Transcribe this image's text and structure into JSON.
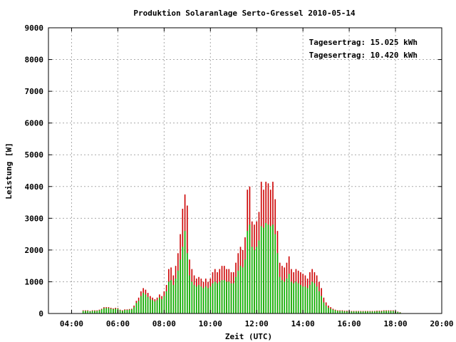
{
  "chart_data": {
    "type": "bar",
    "title": "Produktion Solaranlage Serto-Gressel 2010-05-14",
    "xlabel": "Zeit (UTC)",
    "ylabel": "Leistung [W]",
    "xlim_hours": [
      3.0,
      20.0
    ],
    "ylim": [
      0,
      9000
    ],
    "x_ticks": [
      "04:00",
      "06:00",
      "08:00",
      "10:00",
      "12:00",
      "14:00",
      "16:00",
      "18:00",
      "20:00"
    ],
    "y_ticks": [
      "0",
      "1000",
      "2000",
      "3000",
      "4000",
      "5000",
      "6000",
      "7000",
      "8000",
      "9000"
    ],
    "grid": true,
    "legend_position": "top-right",
    "colors": {
      "series_1": "#cc0000",
      "series_2": "#00bb00",
      "grid": "#aaaaaa"
    },
    "legend": [
      {
        "text": "Tagesertrag: 15.025 kWh",
        "color": "#cc0000"
      },
      {
        "text": "Tagesertrag: 10.420 kWh",
        "color": "#00bb00"
      }
    ],
    "series": [
      {
        "color": "#cc0000",
        "points": [
          [
            4.5,
            100
          ],
          [
            4.6,
            100
          ],
          [
            4.7,
            100
          ],
          [
            4.8,
            80
          ],
          [
            4.9,
            100
          ],
          [
            5.0,
            100
          ],
          [
            5.1,
            100
          ],
          [
            5.2,
            120
          ],
          [
            5.3,
            150
          ],
          [
            5.4,
            200
          ],
          [
            5.5,
            200
          ],
          [
            5.6,
            200
          ],
          [
            5.7,
            180
          ],
          [
            5.8,
            160
          ],
          [
            5.9,
            180
          ],
          [
            6.0,
            170
          ],
          [
            6.1,
            120
          ],
          [
            6.2,
            100
          ],
          [
            6.3,
            130
          ],
          [
            6.4,
            130
          ],
          [
            6.5,
            140
          ],
          [
            6.6,
            150
          ],
          [
            6.7,
            250
          ],
          [
            6.8,
            400
          ],
          [
            6.9,
            500
          ],
          [
            7.0,
            700
          ],
          [
            7.1,
            800
          ],
          [
            7.2,
            750
          ],
          [
            7.3,
            650
          ],
          [
            7.4,
            550
          ],
          [
            7.5,
            500
          ],
          [
            7.6,
            450
          ],
          [
            7.7,
            500
          ],
          [
            7.8,
            600
          ],
          [
            7.9,
            550
          ],
          [
            8.0,
            700
          ],
          [
            8.1,
            900
          ],
          [
            8.2,
            1400
          ],
          [
            8.3,
            1450
          ],
          [
            8.4,
            1200
          ],
          [
            8.5,
            1500
          ],
          [
            8.6,
            1900
          ],
          [
            8.7,
            2500
          ],
          [
            8.8,
            3300
          ],
          [
            8.9,
            3750
          ],
          [
            9.0,
            3400
          ],
          [
            9.1,
            1700
          ],
          [
            9.2,
            1400
          ],
          [
            9.3,
            1200
          ],
          [
            9.4,
            1100
          ],
          [
            9.5,
            1150
          ],
          [
            9.6,
            1100
          ],
          [
            9.7,
            1000
          ],
          [
            9.8,
            1100
          ],
          [
            9.9,
            1000
          ],
          [
            10.0,
            1100
          ],
          [
            10.1,
            1300
          ],
          [
            10.2,
            1400
          ],
          [
            10.3,
            1300
          ],
          [
            10.4,
            1400
          ],
          [
            10.5,
            1500
          ],
          [
            10.6,
            1500
          ],
          [
            10.7,
            1400
          ],
          [
            10.8,
            1400
          ],
          [
            10.9,
            1300
          ],
          [
            11.0,
            1300
          ],
          [
            11.1,
            1600
          ],
          [
            11.2,
            1900
          ],
          [
            11.3,
            2100
          ],
          [
            11.4,
            2000
          ],
          [
            11.5,
            2400
          ],
          [
            11.6,
            3900
          ],
          [
            11.7,
            4000
          ],
          [
            11.8,
            2900
          ],
          [
            11.9,
            2800
          ],
          [
            12.0,
            2900
          ],
          [
            12.1,
            3200
          ],
          [
            12.2,
            4150
          ],
          [
            12.3,
            3900
          ],
          [
            12.4,
            4150
          ],
          [
            12.5,
            4100
          ],
          [
            12.6,
            3900
          ],
          [
            12.7,
            4150
          ],
          [
            12.8,
            3600
          ],
          [
            12.9,
            2600
          ],
          [
            13.0,
            1600
          ],
          [
            13.1,
            1500
          ],
          [
            13.2,
            1450
          ],
          [
            13.3,
            1600
          ],
          [
            13.4,
            1800
          ],
          [
            13.5,
            1400
          ],
          [
            13.6,
            1300
          ],
          [
            13.7,
            1400
          ],
          [
            13.8,
            1350
          ],
          [
            13.9,
            1300
          ],
          [
            14.0,
            1250
          ],
          [
            14.1,
            1200
          ],
          [
            14.2,
            1100
          ],
          [
            14.3,
            1300
          ],
          [
            14.4,
            1400
          ],
          [
            14.5,
            1300
          ],
          [
            14.6,
            1200
          ],
          [
            14.7,
            1000
          ],
          [
            14.8,
            800
          ],
          [
            14.9,
            500
          ],
          [
            15.0,
            350
          ],
          [
            15.1,
            250
          ],
          [
            15.2,
            200
          ],
          [
            15.3,
            150
          ],
          [
            15.4,
            120
          ],
          [
            15.5,
            100
          ],
          [
            15.6,
            100
          ],
          [
            15.7,
            100
          ],
          [
            15.8,
            90
          ],
          [
            15.9,
            90
          ],
          [
            16.0,
            90
          ],
          [
            16.1,
            80
          ],
          [
            16.2,
            80
          ],
          [
            16.3,
            80
          ],
          [
            16.4,
            80
          ],
          [
            16.5,
            80
          ],
          [
            16.6,
            80
          ],
          [
            16.7,
            80
          ],
          [
            16.8,
            80
          ],
          [
            16.9,
            80
          ],
          [
            17.0,
            80
          ],
          [
            17.1,
            80
          ],
          [
            17.2,
            90
          ],
          [
            17.3,
            90
          ],
          [
            17.4,
            90
          ],
          [
            17.5,
            100
          ],
          [
            17.6,
            100
          ],
          [
            17.7,
            100
          ],
          [
            17.8,
            100
          ],
          [
            17.9,
            100
          ],
          [
            18.0,
            80
          ],
          [
            18.1,
            60
          ],
          [
            18.2,
            40
          ]
        ]
      },
      {
        "color": "#00bb00",
        "points": [
          [
            4.5,
            80
          ],
          [
            4.6,
            80
          ],
          [
            4.7,
            80
          ],
          [
            4.8,
            70
          ],
          [
            4.9,
            80
          ],
          [
            5.0,
            80
          ],
          [
            5.1,
            80
          ],
          [
            5.2,
            100
          ],
          [
            5.3,
            130
          ],
          [
            5.4,
            170
          ],
          [
            5.5,
            170
          ],
          [
            5.6,
            170
          ],
          [
            5.7,
            150
          ],
          [
            5.8,
            140
          ],
          [
            5.9,
            150
          ],
          [
            6.0,
            150
          ],
          [
            6.1,
            100
          ],
          [
            6.2,
            80
          ],
          [
            6.3,
            110
          ],
          [
            6.4,
            110
          ],
          [
            6.5,
            120
          ],
          [
            6.6,
            130
          ],
          [
            6.7,
            200
          ],
          [
            6.8,
            330
          ],
          [
            6.9,
            400
          ],
          [
            7.0,
            550
          ],
          [
            7.1,
            650
          ],
          [
            7.2,
            600
          ],
          [
            7.3,
            520
          ],
          [
            7.4,
            450
          ],
          [
            7.5,
            420
          ],
          [
            7.6,
            380
          ],
          [
            7.7,
            420
          ],
          [
            7.8,
            500
          ],
          [
            7.9,
            450
          ],
          [
            8.0,
            550
          ],
          [
            8.1,
            700
          ],
          [
            8.2,
            1000
          ],
          [
            8.3,
            1050
          ],
          [
            8.4,
            900
          ],
          [
            8.5,
            1100
          ],
          [
            8.6,
            1350
          ],
          [
            8.7,
            1700
          ],
          [
            8.8,
            2100
          ],
          [
            8.9,
            2600
          ],
          [
            9.0,
            1900
          ],
          [
            9.1,
            1200
          ],
          [
            9.2,
            1000
          ],
          [
            9.3,
            900
          ],
          [
            9.4,
            850
          ],
          [
            9.5,
            900
          ],
          [
            9.6,
            850
          ],
          [
            9.7,
            800
          ],
          [
            9.8,
            850
          ],
          [
            9.9,
            800
          ],
          [
            10.0,
            850
          ],
          [
            10.1,
            950
          ],
          [
            10.2,
            1000
          ],
          [
            10.3,
            950
          ],
          [
            10.4,
            1000
          ],
          [
            10.5,
            1050
          ],
          [
            10.6,
            1050
          ],
          [
            10.7,
            1000
          ],
          [
            10.8,
            1000
          ],
          [
            10.9,
            950
          ],
          [
            11.0,
            950
          ],
          [
            11.1,
            1150
          ],
          [
            11.2,
            1350
          ],
          [
            11.3,
            1500
          ],
          [
            11.4,
            1450
          ],
          [
            11.5,
            1700
          ],
          [
            11.6,
            2600
          ],
          [
            11.7,
            2800
          ],
          [
            11.8,
            2100
          ],
          [
            11.9,
            2000
          ],
          [
            12.0,
            2100
          ],
          [
            12.1,
            2300
          ],
          [
            12.2,
            2750
          ],
          [
            12.3,
            2700
          ],
          [
            12.4,
            2850
          ],
          [
            12.5,
            2800
          ],
          [
            12.6,
            2750
          ],
          [
            12.7,
            2800
          ],
          [
            12.8,
            2500
          ],
          [
            12.9,
            1900
          ],
          [
            13.0,
            1150
          ],
          [
            13.1,
            1050
          ],
          [
            13.2,
            1000
          ],
          [
            13.3,
            1100
          ],
          [
            13.4,
            1250
          ],
          [
            13.5,
            1000
          ],
          [
            13.6,
            950
          ],
          [
            13.7,
            1000
          ],
          [
            13.8,
            950
          ],
          [
            13.9,
            900
          ],
          [
            14.0,
            850
          ],
          [
            14.1,
            850
          ],
          [
            14.2,
            800
          ],
          [
            14.3,
            900
          ],
          [
            14.4,
            1000
          ],
          [
            14.5,
            950
          ],
          [
            14.6,
            850
          ],
          [
            14.7,
            700
          ],
          [
            14.8,
            550
          ],
          [
            14.9,
            350
          ],
          [
            15.0,
            250
          ],
          [
            15.1,
            180
          ],
          [
            15.2,
            150
          ],
          [
            15.3,
            120
          ],
          [
            15.4,
            100
          ],
          [
            15.5,
            80
          ],
          [
            15.6,
            80
          ],
          [
            15.7,
            80
          ],
          [
            15.8,
            70
          ],
          [
            15.9,
            70
          ],
          [
            16.0,
            70
          ],
          [
            16.1,
            65
          ],
          [
            16.2,
            65
          ],
          [
            16.3,
            65
          ],
          [
            16.4,
            65
          ],
          [
            16.5,
            65
          ],
          [
            16.6,
            65
          ],
          [
            16.7,
            65
          ],
          [
            16.8,
            65
          ],
          [
            16.9,
            65
          ],
          [
            17.0,
            65
          ],
          [
            17.1,
            65
          ],
          [
            17.2,
            70
          ],
          [
            17.3,
            70
          ],
          [
            17.4,
            70
          ],
          [
            17.5,
            80
          ],
          [
            17.6,
            80
          ],
          [
            17.7,
            80
          ],
          [
            17.8,
            80
          ],
          [
            17.9,
            80
          ],
          [
            18.0,
            65
          ],
          [
            18.1,
            50
          ],
          [
            18.2,
            30
          ]
        ]
      }
    ]
  }
}
